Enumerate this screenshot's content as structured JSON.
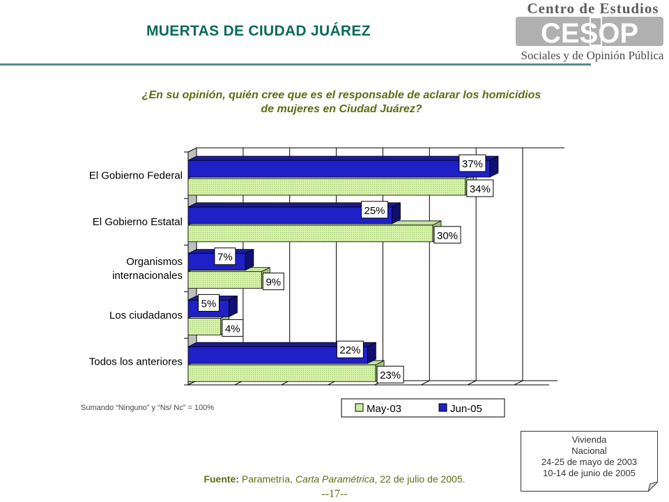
{
  "header": {
    "title": "MUERTAS DE CIUDAD JUÁREZ",
    "logo_top": "Centro de Estudios",
    "logo_mark": "CESOP",
    "logo_bottom": "Sociales y de Opinión Pública"
  },
  "question": {
    "line1": "¿En su  opinión, quién cree que es el responsable de aclarar los homicidios",
    "line2": "de mujeres en Ciudad Juárez?"
  },
  "chart_data": {
    "type": "bar",
    "orientation": "horizontal",
    "categories": [
      [
        "El Gobierno Federal"
      ],
      [
        "El Gobierno Estatal"
      ],
      [
        "Organismos",
        "internacionales"
      ],
      [
        "Los ciudadanos"
      ],
      [
        "Todos los anteriores"
      ]
    ],
    "series": [
      {
        "name": "Jun-05",
        "values": [
          37,
          25,
          7,
          5,
          22
        ],
        "color": "#2020c8",
        "labels": [
          "37%",
          "25%",
          "7%",
          "5%",
          "22%"
        ]
      },
      {
        "name": "May-03",
        "values": [
          34,
          30,
          9,
          4,
          23
        ],
        "color": "#ccee99",
        "labels": [
          "34%",
          "30%",
          "9%",
          "4%",
          "23%"
        ]
      }
    ],
    "legend": {
      "position": "bottom-right",
      "entries": [
        "May-03",
        "Jun-05"
      ]
    },
    "xlim": [
      0,
      40
    ],
    "grid": true,
    "style": "3d"
  },
  "note": "Sumando “Ninguno” y “Ns/ Nc” = 100%",
  "source": {
    "label": "Fuente:",
    "pre": " Parametría, ",
    "italic": "Carta Paramétrica",
    "post": ", 22 de julio de 2005."
  },
  "page_number": "--17--",
  "survey_box": {
    "line1": "Vivienda",
    "line2": "Nacional",
    "line3": "24-25 de mayo de 2003",
    "line4": "10-14 de junio de 2005"
  }
}
